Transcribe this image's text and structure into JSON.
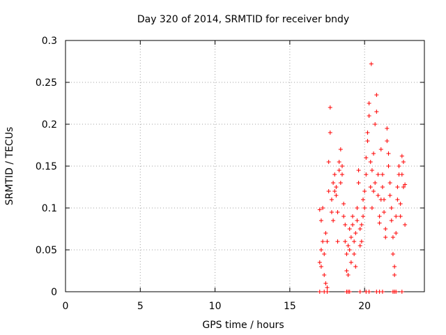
{
  "chart_data": {
    "type": "scatter",
    "title": "Day 320 of 2014, SRMTID for receiver bndy",
    "xlabel": "GPS time / hours",
    "ylabel": "SRMTID / TECUs",
    "xlim": [
      0,
      24
    ],
    "ylim": [
      0,
      0.3
    ],
    "x_ticks": [
      0,
      5,
      10,
      15,
      20
    ],
    "x_tick_labels": [
      "0",
      "5",
      "10",
      "15",
      "20"
    ],
    "y_ticks": [
      0,
      0.05,
      0.1,
      0.15,
      0.2,
      0.25,
      0.3
    ],
    "y_tick_labels": [
      "0",
      "0.05",
      "0.1",
      "0.15",
      "0.2",
      "0.25",
      "0.3"
    ],
    "grid": true,
    "marker": "plus",
    "color": "#ff0000",
    "series": [
      {
        "name": "SRMTID",
        "x": [
          17.0,
          17.0,
          17.1,
          17.1,
          17.1,
          17.2,
          17.2,
          17.3,
          17.3,
          17.4,
          17.4,
          17.5,
          17.5,
          17.6,
          17.6,
          17.7,
          17.7,
          17.8,
          17.8,
          17.9,
          17.9,
          18.0,
          18.0,
          18.1,
          18.1,
          18.2,
          18.2,
          18.3,
          18.3,
          18.4,
          18.4,
          18.5,
          18.5,
          18.6,
          18.6,
          18.7,
          18.7,
          18.8,
          18.8,
          18.9,
          18.9,
          19.0,
          19.0,
          19.1,
          19.1,
          19.2,
          19.2,
          19.3,
          19.3,
          19.4,
          19.4,
          19.5,
          19.5,
          19.6,
          19.6,
          19.7,
          19.7,
          19.8,
          19.8,
          19.9,
          19.9,
          20.0,
          20.0,
          20.1,
          20.1,
          20.2,
          20.2,
          20.3,
          20.3,
          20.4,
          20.4,
          20.5,
          20.5,
          20.6,
          20.6,
          20.7,
          20.7,
          20.8,
          20.8,
          20.9,
          20.9,
          21.0,
          21.0,
          21.1,
          21.1,
          21.2,
          21.2,
          21.3,
          21.3,
          21.4,
          21.4,
          21.5,
          21.5,
          21.6,
          21.6,
          21.7,
          21.7,
          21.8,
          21.8,
          21.9,
          21.9,
          22.0,
          22.0,
          22.1,
          22.1,
          22.2,
          22.2,
          22.3,
          22.3,
          22.4,
          22.4,
          22.5,
          22.5,
          22.6,
          22.6,
          22.7,
          22.7,
          17.0,
          17.3,
          17.5,
          18.8,
          18.9,
          19.0,
          19.7,
          20.1,
          20.3,
          20.8,
          21.0,
          21.2,
          21.9,
          22.0,
          22.1,
          22.5,
          20.45
        ],
        "y": [
          0.035,
          0.098,
          0.05,
          0.085,
          0.03,
          0.06,
          0.1,
          0.045,
          0.02,
          0.01,
          0.07,
          0.005,
          0.06,
          0.12,
          0.155,
          0.22,
          0.19,
          0.095,
          0.11,
          0.13,
          0.085,
          0.12,
          0.14,
          0.115,
          0.125,
          0.06,
          0.095,
          0.145,
          0.155,
          0.17,
          0.13,
          0.14,
          0.15,
          0.09,
          0.105,
          0.08,
          0.06,
          0.045,
          0.025,
          0.02,
          0.055,
          0.075,
          0.05,
          0.035,
          0.065,
          0.08,
          0.09,
          0.06,
          0.045,
          0.03,
          0.07,
          0.1,
          0.085,
          0.13,
          0.145,
          0.075,
          0.055,
          0.08,
          0.06,
          0.09,
          0.11,
          0.12,
          0.1,
          0.14,
          0.16,
          0.19,
          0.18,
          0.21,
          0.225,
          0.125,
          0.155,
          0.1,
          0.145,
          0.165,
          0.12,
          0.13,
          0.2,
          0.215,
          0.235,
          0.14,
          0.115,
          0.09,
          0.082,
          0.11,
          0.17,
          0.14,
          0.125,
          0.095,
          0.11,
          0.065,
          0.075,
          0.18,
          0.195,
          0.15,
          0.165,
          0.115,
          0.13,
          0.085,
          0.1,
          0.065,
          0.045,
          0.03,
          0.02,
          0.07,
          0.09,
          0.11,
          0.125,
          0.14,
          0.15,
          0.105,
          0.09,
          0.14,
          0.162,
          0.155,
          0.125,
          0.128,
          0.08,
          0,
          0,
          0,
          0,
          0,
          0,
          0,
          0,
          0,
          0,
          0,
          0,
          0,
          0,
          0,
          0,
          0.272
        ]
      }
    ]
  }
}
